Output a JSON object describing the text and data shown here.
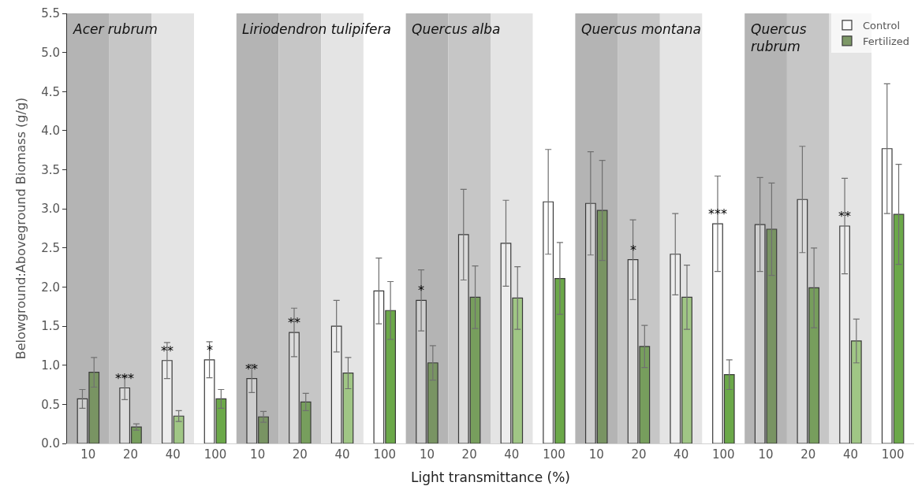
{
  "chart_data": {
    "type": "bar",
    "xlabel": "Light transmittance (%)",
    "ylabel": "Belowground:Aboveground Biomass (g/g)",
    "categories": [
      "10",
      "20",
      "40",
      "100",
      "10",
      "20",
      "40",
      "100",
      "10",
      "20",
      "40",
      "100",
      "10",
      "20",
      "40",
      "100",
      "10",
      "20",
      "40",
      "100"
    ],
    "series": [
      {
        "name": "Control",
        "color": "#ffffff",
        "values": [
          0.57,
          0.71,
          1.06,
          1.07,
          0.83,
          1.42,
          1.5,
          1.95,
          1.83,
          2.67,
          2.56,
          3.09,
          3.07,
          2.35,
          2.42,
          2.81,
          2.8,
          3.12,
          2.78,
          3.77
        ],
        "errors": [
          0.12,
          0.15,
          0.23,
          0.23,
          0.18,
          0.31,
          0.33,
          0.42,
          0.39,
          0.58,
          0.55,
          0.67,
          0.66,
          0.51,
          0.52,
          0.61,
          0.6,
          0.68,
          0.61,
          0.83
        ],
        "value_labels": [
          null,
          "***",
          "**",
          "*",
          "**",
          "**",
          null,
          null,
          "*",
          null,
          null,
          null,
          null,
          "*",
          null,
          "***",
          null,
          null,
          "**",
          null
        ]
      },
      {
        "name": "Fertilized",
        "colors": [
          "#76925f",
          "#739c57",
          "#9cc47f",
          "#63a33f",
          "#76925f",
          "#739c57",
          "#9cc47f",
          "#63a33f",
          "#76925f",
          "#739c57",
          "#9cc47f",
          "#63a33f",
          "#76925f",
          "#739c57",
          "#9cc47f",
          "#63a33f",
          "#76925f",
          "#739c57",
          "#9cc47f",
          "#63a33f"
        ],
        "values": [
          0.91,
          0.21,
          0.35,
          0.57,
          0.34,
          0.53,
          0.9,
          1.7,
          1.03,
          1.87,
          1.86,
          2.11,
          2.98,
          1.24,
          1.87,
          0.88,
          2.74,
          1.99,
          1.31,
          2.93
        ],
        "errors": [
          0.19,
          0.04,
          0.07,
          0.12,
          0.07,
          0.11,
          0.2,
          0.37,
          0.22,
          0.4,
          0.4,
          0.46,
          0.64,
          0.27,
          0.41,
          0.19,
          0.59,
          0.51,
          0.28,
          0.64
        ]
      }
    ],
    "annotations": [
      "Acer rubrum",
      "Liriodendron tulipifera",
      "Quercus alba",
      "Quercus montana",
      "Quercus\nrubrum"
    ],
    "ylim": [
      0,
      5.5
    ],
    "yticks": [
      {
        "value": 0,
        "label": "0.0"
      },
      {
        "value": 0.5,
        "label": "0.5"
      },
      {
        "value": 1,
        "label": "1.0"
      },
      {
        "value": 1.5,
        "label": "1.5"
      },
      {
        "value": 2,
        "label": "2.0"
      },
      {
        "value": 2.5,
        "label": "2.5"
      },
      {
        "value": 3,
        "label": "3.0"
      },
      {
        "value": 3.5,
        "label": "3.5"
      },
      {
        "value": 4,
        "label": "4.0"
      },
      {
        "value": 4.5,
        "label": "4.5"
      },
      {
        "value": 5,
        "label": "5.0"
      },
      {
        "value": 5.5,
        "label": "5.5"
      }
    ],
    "grid": false,
    "legend": "top right"
  }
}
